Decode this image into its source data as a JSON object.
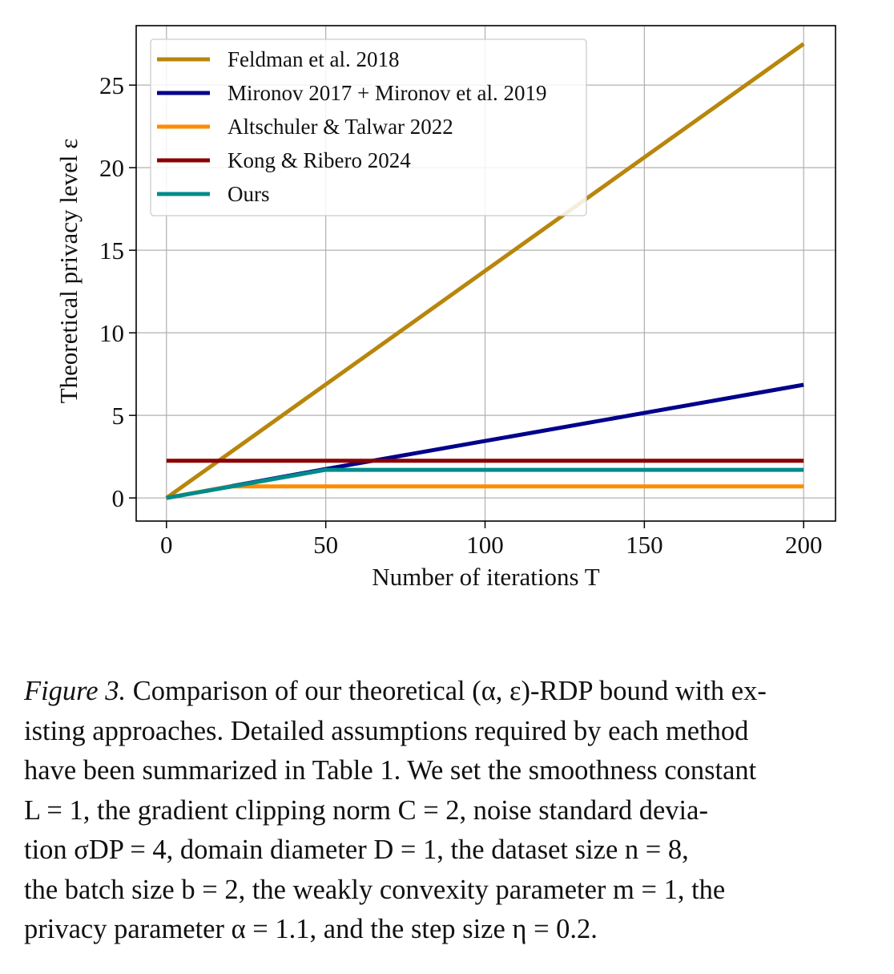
{
  "chart_data": {
    "type": "line",
    "title": "",
    "xlabel": "Number of iterations T",
    "ylabel": "Theoretical privacy level ε",
    "xlim": [
      -9.5,
      210
    ],
    "ylim": [
      -1.4,
      28.6
    ],
    "xticks": [
      0,
      50,
      100,
      150,
      200
    ],
    "yticks": [
      0,
      5,
      10,
      15,
      20,
      25
    ],
    "grid": true,
    "legend_position": "top-left",
    "series": [
      {
        "name": "Feldman et al. 2018",
        "color": "#b8860b",
        "x": [
          0,
          200
        ],
        "y": [
          0,
          27.5
        ]
      },
      {
        "name": "Mironov 2017 + Mironov et al. 2019",
        "color": "#00008b",
        "x": [
          0,
          50,
          100,
          150,
          200
        ],
        "y": [
          0,
          1.75,
          3.45,
          5.15,
          6.85
        ]
      },
      {
        "name": "Altschuler & Talwar 2022",
        "color": "#ff8c00",
        "x": [
          0,
          20,
          200
        ],
        "y": [
          0,
          0.7,
          0.7
        ]
      },
      {
        "name": "Kong & Ribero 2024",
        "color": "#8b0000",
        "x": [
          0,
          200
        ],
        "y": [
          2.25,
          2.25
        ]
      },
      {
        "name": "Ours",
        "color": "#008b8b",
        "x": [
          0,
          50,
          200
        ],
        "y": [
          0,
          1.7,
          1.7
        ]
      }
    ]
  },
  "caption": {
    "label": "Figure 3.",
    "lines": [
      "Comparison of our theoretical (α, ε)-RDP bound with ex-",
      "isting approaches. Detailed assumptions required by each method",
      "have been summarized in Table 1. We set the smoothness constant",
      "L = 1, the gradient clipping norm C = 2, noise standard devia-",
      "tion σDP = 4, domain diameter D = 1, the dataset size n = 8,",
      "the batch size b = 2, the weakly convexity parameter m = 1, the",
      "privacy parameter α = 1.1, and the step size η = 0.2."
    ]
  }
}
